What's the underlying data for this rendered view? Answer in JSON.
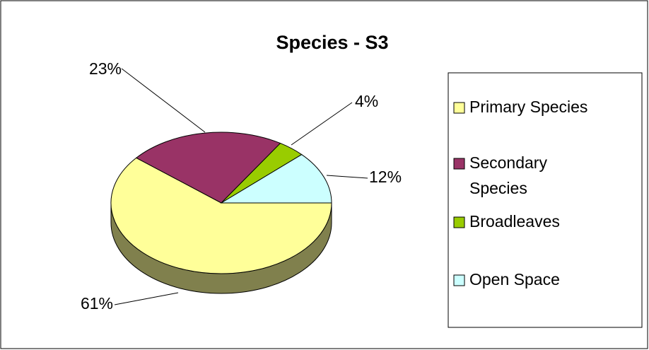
{
  "chart_data": {
    "type": "pie",
    "title": "Species - S3",
    "categories": [
      "Primary Species",
      "Secondary Species",
      "Broadleaves",
      "Open Space"
    ],
    "values": [
      61,
      23,
      4,
      12
    ],
    "value_labels": [
      "61%",
      "23%",
      "4%",
      "12%"
    ],
    "colors": [
      "#ffff99",
      "#993366",
      "#99cc00",
      "#ccffff"
    ],
    "legend": "right"
  }
}
